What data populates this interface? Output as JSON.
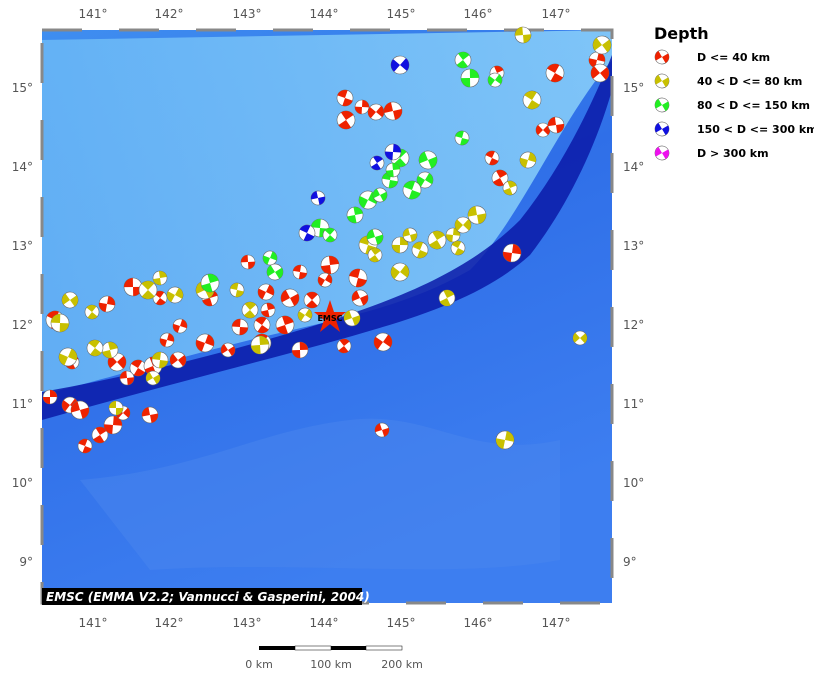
{
  "map": {
    "lon_labels": [
      "141°",
      "142°",
      "143°",
      "144°",
      "145°",
      "146°",
      "147°"
    ],
    "lat_labels": [
      "15°",
      "14°",
      "13°",
      "12°",
      "11°",
      "10°",
      "9°"
    ],
    "epicenter_label": "EMSC",
    "credit": "EMSC (EMMA V2.2; Vannucci & Gasperini, 2004)",
    "scale_labels": [
      "0 km",
      "100 km",
      "200 km"
    ]
  },
  "legend": {
    "title": "Depth",
    "items": [
      {
        "label": "D <= 40 km",
        "color": "#ee2200"
      },
      {
        "label": "40 < D <= 80 km",
        "color": "#c8c000"
      },
      {
        "label": "80 < D <= 150 km",
        "color": "#22ee22"
      },
      {
        "label": "150 < D <= 300 km",
        "color": "#1010e0"
      },
      {
        "label": "D > 300 km",
        "color": "#ee10ee"
      }
    ]
  }
}
